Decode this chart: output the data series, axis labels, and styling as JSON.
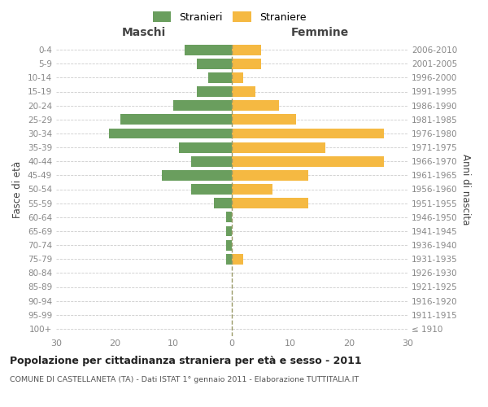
{
  "age_groups": [
    "100+",
    "95-99",
    "90-94",
    "85-89",
    "80-84",
    "75-79",
    "70-74",
    "65-69",
    "60-64",
    "55-59",
    "50-54",
    "45-49",
    "40-44",
    "35-39",
    "30-34",
    "25-29",
    "20-24",
    "15-19",
    "10-14",
    "5-9",
    "0-4"
  ],
  "birth_years": [
    "≤ 1910",
    "1911-1915",
    "1916-1920",
    "1921-1925",
    "1926-1930",
    "1931-1935",
    "1936-1940",
    "1941-1945",
    "1946-1950",
    "1951-1955",
    "1956-1960",
    "1961-1965",
    "1966-1970",
    "1971-1975",
    "1976-1980",
    "1981-1985",
    "1986-1990",
    "1991-1995",
    "1996-2000",
    "2001-2005",
    "2006-2010"
  ],
  "males": [
    0,
    0,
    0,
    0,
    0,
    1,
    1,
    1,
    1,
    3,
    7,
    12,
    7,
    9,
    21,
    19,
    10,
    6,
    4,
    6,
    8
  ],
  "females": [
    0,
    0,
    0,
    0,
    0,
    2,
    0,
    0,
    0,
    13,
    7,
    13,
    26,
    16,
    26,
    11,
    8,
    4,
    2,
    5,
    5
  ],
  "male_color": "#6a9e5e",
  "female_color": "#f5b942",
  "background_color": "#ffffff",
  "grid_color": "#cccccc",
  "title": "Popolazione per cittadinanza straniera per età e sesso - 2011",
  "subtitle": "COMUNE DI CASTELLANETA (TA) - Dati ISTAT 1° gennaio 2011 - Elaborazione TUTTITALIA.IT",
  "xlabel_left": "Maschi",
  "xlabel_right": "Femmine",
  "ylabel_left": "Fasce di età",
  "ylabel_right": "Anni di nascita",
  "legend_male": "Stranieri",
  "legend_female": "Straniere",
  "xlim": 30,
  "center_line_color": "#999966",
  "tick_color": "#888888",
  "axis_label_color": "#444444",
  "x_ticks": [
    -30,
    -20,
    -10,
    0,
    10,
    20,
    30
  ],
  "x_tick_labels": [
    "30",
    "20",
    "10",
    "0",
    "10",
    "20",
    "30"
  ]
}
